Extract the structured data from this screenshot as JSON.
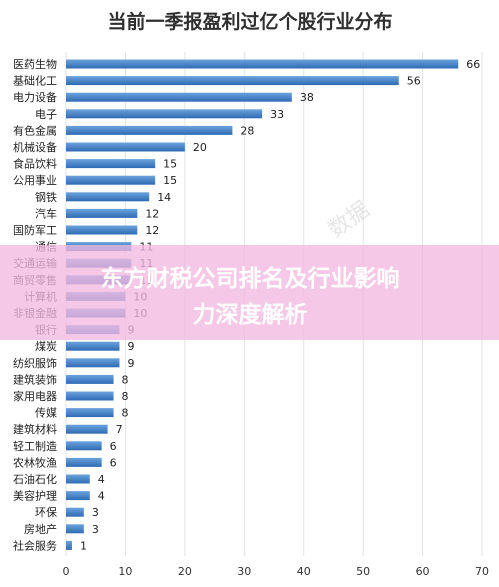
{
  "chart_data": {
    "type": "bar",
    "orientation": "horizontal",
    "title": "当前一季报盈利过亿个股行业分布",
    "categories": [
      "医药生物",
      "基础化工",
      "电力设备",
      "电子",
      "有色金属",
      "机械设备",
      "食品饮料",
      "公用事业",
      "钢铁",
      "汽车",
      "国防军工",
      "通信",
      "交通运输",
      "商贸零售",
      "计算机",
      "非银金融",
      "银行",
      "煤炭",
      "纺织服饰",
      "建筑装饰",
      "家用电器",
      "传媒",
      "建筑材料",
      "轻工制造",
      "农林牧渔",
      "石油石化",
      "美容护理",
      "环保",
      "房地产",
      "社会服务"
    ],
    "values": [
      66,
      56,
      38,
      33,
      28,
      20,
      15,
      15,
      14,
      12,
      12,
      11,
      11,
      11,
      10,
      10,
      9,
      9,
      9,
      8,
      8,
      8,
      7,
      6,
      6,
      4,
      4,
      3,
      3,
      1
    ],
    "xlim": [
      0,
      70
    ],
    "xticks": [
      0,
      10,
      20,
      30,
      40,
      50,
      60,
      70
    ],
    "grid": true,
    "bar_color": "#3d7cc4"
  },
  "overlay": {
    "line1": "东方财税公司排名及行业影响",
    "line2": "力深度解析",
    "band_color": "#f2b8e0"
  },
  "watermark": {
    "text": "数据"
  }
}
